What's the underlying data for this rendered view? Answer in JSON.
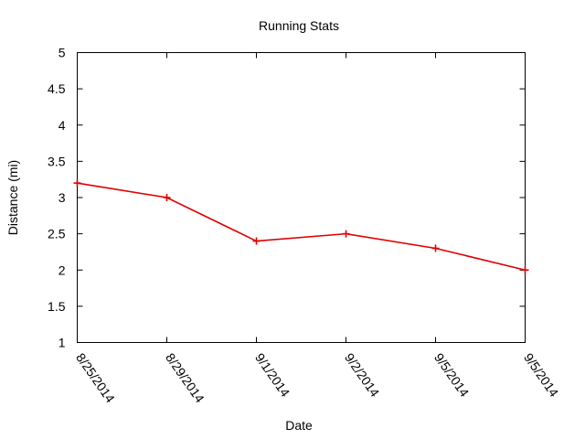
{
  "chart_data": {
    "type": "line",
    "title": "Running Stats",
    "xlabel": "Date",
    "ylabel": "Distance (mi)",
    "categories": [
      "8/25/2014",
      "8/29/2014",
      "9/1/2014",
      "9/2/2014",
      "9/5/2014",
      "9/5/2014"
    ],
    "series": [
      {
        "values": [
          3.2,
          3.0,
          2.4,
          2.5,
          2.3,
          2.0
        ],
        "color": "#e00000"
      }
    ],
    "ylim": [
      1,
      5
    ],
    "yticks": [
      "1",
      "1.5",
      "2",
      "2.5",
      "3",
      "3.5",
      "4",
      "4.5",
      "5"
    ],
    "grid": false,
    "legend": "none"
  }
}
